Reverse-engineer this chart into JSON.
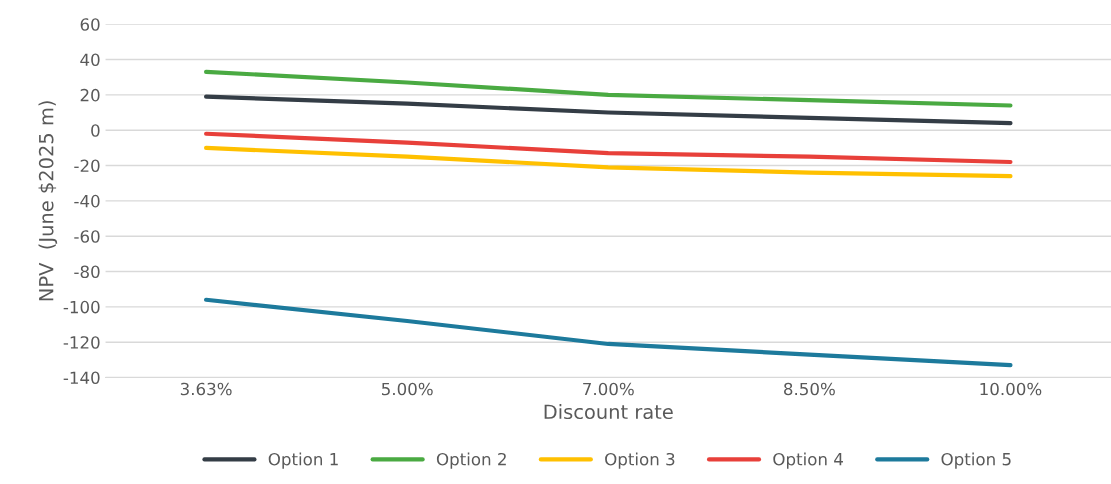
{
  "chart_data": {
    "type": "line",
    "xlabel": "Discount rate",
    "ylabel": "NPV  (June $2025 m)",
    "categories": [
      "3.63%",
      "5.00%",
      "7.00%",
      "8.50%",
      "10.00%"
    ],
    "series": [
      {
        "name": "Option 1",
        "color": "#343d46",
        "values": [
          19,
          15,
          10,
          7,
          4
        ]
      },
      {
        "name": "Option 2",
        "color": "#4aaa42",
        "values": [
          33,
          27,
          20,
          17,
          14
        ]
      },
      {
        "name": "Option 3",
        "color": "#ffc000",
        "values": [
          -10,
          -15,
          -21,
          -24,
          -26
        ]
      },
      {
        "name": "Option 4",
        "color": "#e8403a",
        "values": [
          -2,
          -7,
          -13,
          -15,
          -18
        ]
      },
      {
        "name": "Option 5",
        "color": "#1d7a9c",
        "values": [
          -96,
          -108,
          -121,
          -127,
          -133
        ]
      }
    ],
    "ylim": [
      -140,
      60
    ],
    "yticks": [
      -140,
      -120,
      -100,
      -80,
      -60,
      -40,
      -20,
      0,
      20,
      40,
      60
    ],
    "grid": "y",
    "legend": "bottom",
    "marker": "none",
    "line_style": "solid"
  }
}
